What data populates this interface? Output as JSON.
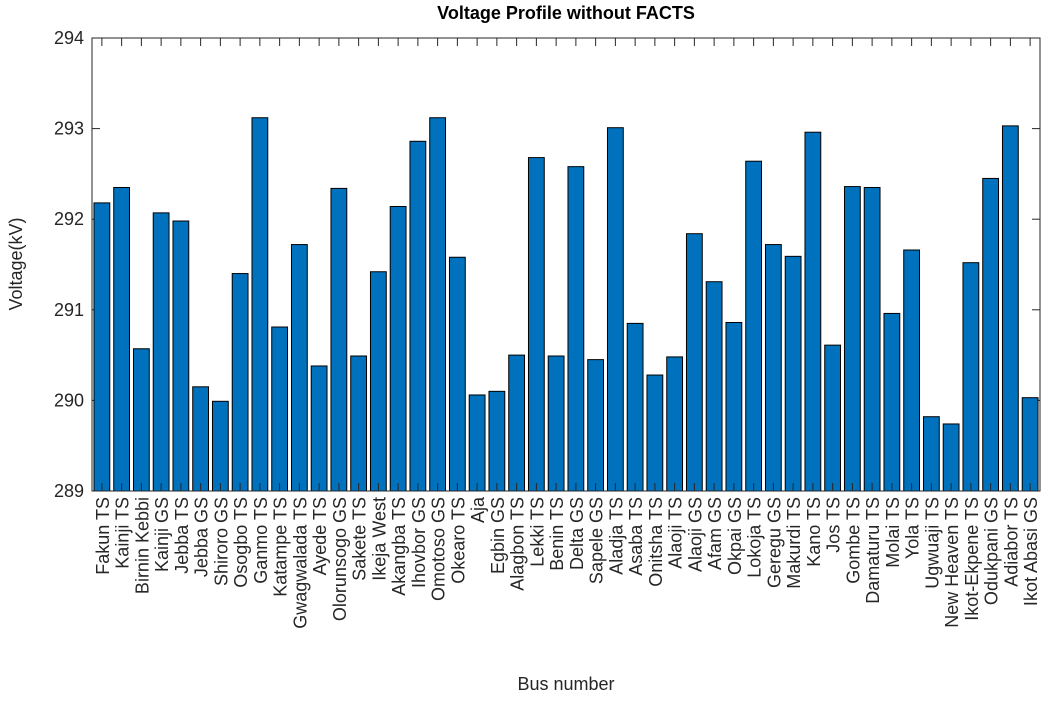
{
  "chart_data": {
    "type": "bar",
    "title": "Voltage Profile without FACTS",
    "xlabel": "Bus number",
    "ylabel": "Voltage(kV)",
    "categories": [
      "Fakun TS",
      "Kainji TS",
      "Birnin Kebbi",
      "Kainji GS",
      "Jebba TS",
      "Jebba GS",
      "Shiroro GS",
      "Osogbo TS",
      "Ganmo TS",
      "Katampe TS",
      "Gwagwalada TS",
      "Ayede TS",
      "Olorunsogo GS",
      "Sakete TS",
      "Ikeja West",
      "Akangba TS",
      "Ihovbor GS",
      "Omotoso GS",
      "Okearo TS",
      "Aja",
      "Egbin GS",
      "Alagbon TS",
      "Lekki TS",
      "Benin TS",
      "Delta GS",
      "Sapele GS",
      "Aladja TS",
      "Asaba TS",
      "Onitsha TS",
      "Alaoji TS",
      "Alaoji GS",
      "Afam GS",
      "Okpai GS",
      "Lokoja TS",
      "Geregu GS",
      "Makurdi TS",
      "Kano TS",
      "Jos TS",
      "Gombe TS",
      "Damaturu TS",
      "Molai TS",
      "Yola TS",
      "Ugwuaji TS",
      "New Heaven TS",
      "Ikot-Ekpene TS",
      "Odukpani GS",
      "Adiabor TS",
      "Ikot Abasi GS"
    ],
    "values": [
      292.18,
      292.35,
      290.57,
      292.07,
      291.98,
      290.15,
      289.99,
      291.4,
      293.12,
      290.81,
      291.72,
      290.38,
      292.34,
      290.49,
      291.42,
      292.14,
      292.86,
      293.12,
      291.58,
      290.06,
      290.1,
      290.5,
      292.68,
      290.49,
      292.58,
      290.45,
      293.01,
      290.85,
      290.28,
      290.48,
      291.84,
      291.31,
      290.86,
      292.64,
      291.72,
      291.59,
      292.96,
      290.61,
      292.36,
      292.35,
      290.96,
      291.66,
      289.82,
      289.74,
      291.52,
      292.45,
      293.03,
      290.03
    ],
    "color": "#0072BD",
    "ylim": [
      289,
      294
    ],
    "yticks": [
      289,
      290,
      291,
      292,
      293,
      294
    ],
    "grid": false
  }
}
